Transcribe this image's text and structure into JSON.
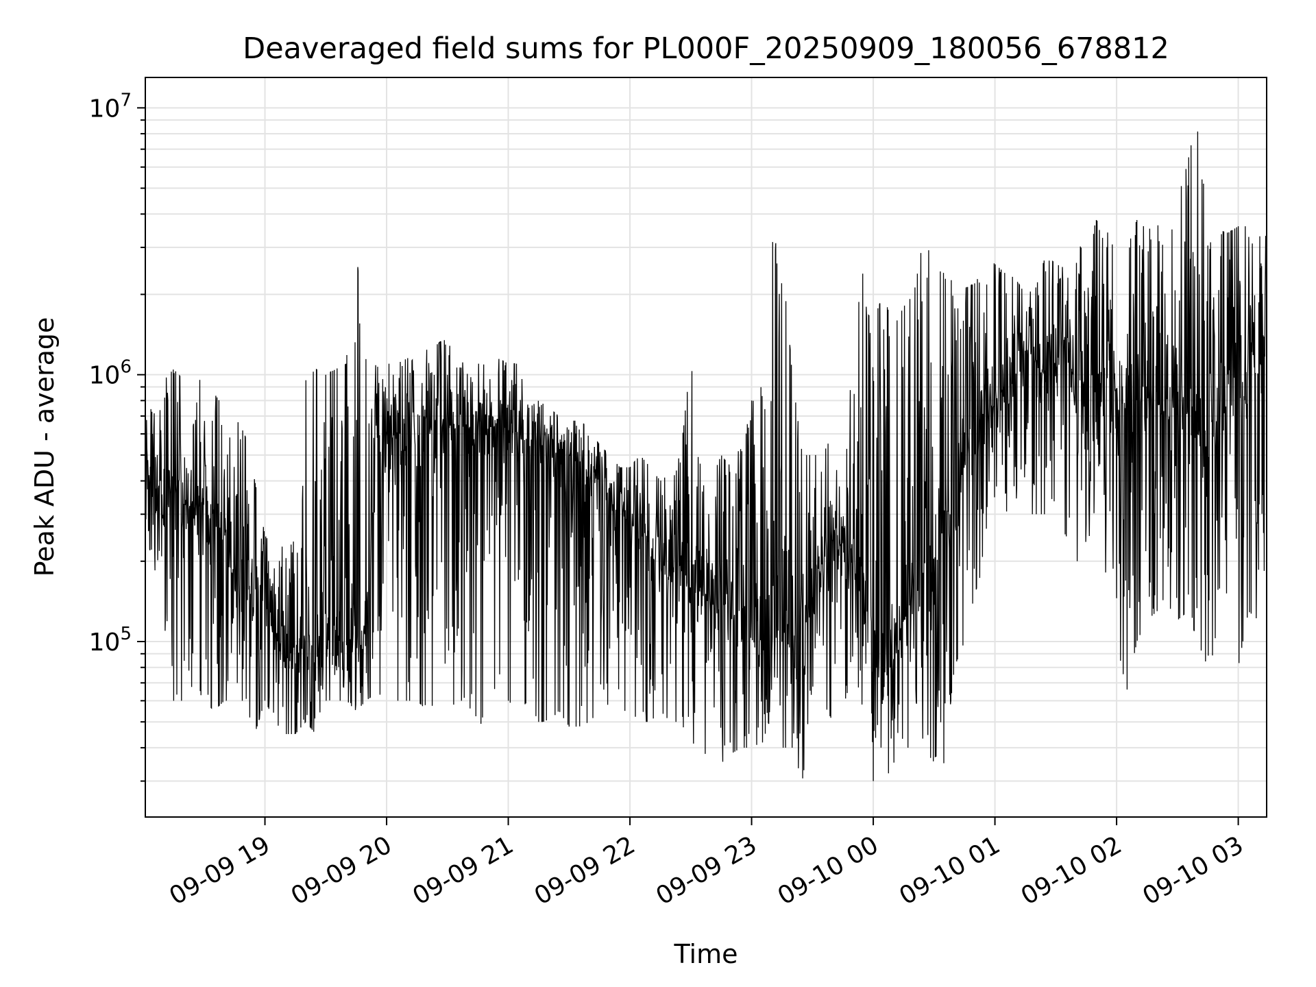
{
  "chart_data": {
    "type": "line",
    "title": "Deaveraged field sums for PL000F_20250909_180056_678812",
    "xlabel": "Time",
    "ylabel": "Peak ADU - average",
    "y_scale": "log",
    "ylim": [
      22000,
      13000000
    ],
    "xlim": [
      "2025-09-09 18:01",
      "2025-09-10 03:14"
    ],
    "grid": true,
    "x_ticks": [
      {
        "time": "2025-09-09 19:00",
        "label": "09-09 19"
      },
      {
        "time": "2025-09-09 20:00",
        "label": "09-09 20"
      },
      {
        "time": "2025-09-09 21:00",
        "label": "09-09 21"
      },
      {
        "time": "2025-09-09 22:00",
        "label": "09-09 22"
      },
      {
        "time": "2025-09-09 23:00",
        "label": "09-09 23"
      },
      {
        "time": "2025-09-10 00:00",
        "label": "09-10 00"
      },
      {
        "time": "2025-09-10 01:00",
        "label": "09-10 01"
      },
      {
        "time": "2025-09-10 02:00",
        "label": "09-10 02"
      },
      {
        "time": "2025-09-10 03:00",
        "label": "09-10 03"
      }
    ],
    "y_ticks": [
      {
        "value": 100000,
        "base": "10",
        "exp": "5"
      },
      {
        "value": 1000000,
        "base": "10",
        "exp": "6"
      },
      {
        "value": 10000000,
        "base": "10",
        "exp": "7"
      }
    ],
    "series": [
      {
        "color": "#000000",
        "x": [
          "2025-09-09 18:01",
          "2025-09-09 18:05",
          "2025-09-09 18:10",
          "2025-09-09 18:15",
          "2025-09-09 18:20",
          "2025-09-09 18:25",
          "2025-09-09 18:30",
          "2025-09-09 18:35",
          "2025-09-09 18:40",
          "2025-09-09 18:45",
          "2025-09-09 18:50",
          "2025-09-09 18:55",
          "2025-09-09 19:00",
          "2025-09-09 19:05",
          "2025-09-09 19:10",
          "2025-09-09 19:15",
          "2025-09-09 19:20",
          "2025-09-09 19:25",
          "2025-09-09 19:30",
          "2025-09-09 19:35",
          "2025-09-09 19:40",
          "2025-09-09 19:45",
          "2025-09-09 19:50",
          "2025-09-09 19:55",
          "2025-09-09 20:00",
          "2025-09-09 20:05",
          "2025-09-09 20:10",
          "2025-09-09 20:15",
          "2025-09-09 20:20",
          "2025-09-09 20:25",
          "2025-09-09 20:30",
          "2025-09-09 20:35",
          "2025-09-09 20:40",
          "2025-09-09 20:45",
          "2025-09-09 20:50",
          "2025-09-09 20:55",
          "2025-09-09 21:00",
          "2025-09-09 21:05",
          "2025-09-09 21:10",
          "2025-09-09 21:15",
          "2025-09-09 21:20",
          "2025-09-09 21:25",
          "2025-09-09 21:30",
          "2025-09-09 21:35",
          "2025-09-09 21:40",
          "2025-09-09 21:45",
          "2025-09-09 21:50",
          "2025-09-09 21:55",
          "2025-09-09 22:00",
          "2025-09-09 22:05",
          "2025-09-09 22:10",
          "2025-09-09 22:15",
          "2025-09-09 22:20",
          "2025-09-09 22:25",
          "2025-09-09 22:30",
          "2025-09-09 22:35",
          "2025-09-09 22:40",
          "2025-09-09 22:45",
          "2025-09-09 22:50",
          "2025-09-09 22:55",
          "2025-09-09 23:00",
          "2025-09-09 23:05",
          "2025-09-09 23:10",
          "2025-09-09 23:15",
          "2025-09-09 23:20",
          "2025-09-09 23:25",
          "2025-09-09 23:30",
          "2025-09-09 23:35",
          "2025-09-09 23:40",
          "2025-09-09 23:45",
          "2025-09-09 23:50",
          "2025-09-09 23:55",
          "2025-09-10 00:00",
          "2025-09-10 00:05",
          "2025-09-10 00:10",
          "2025-09-10 00:15",
          "2025-09-10 00:20",
          "2025-09-10 00:25",
          "2025-09-10 00:30",
          "2025-09-10 00:35",
          "2025-09-10 00:40",
          "2025-09-10 00:45",
          "2025-09-10 00:50",
          "2025-09-10 00:55",
          "2025-09-10 01:00",
          "2025-09-10 01:05",
          "2025-09-10 01:10",
          "2025-09-10 01:15",
          "2025-09-10 01:20",
          "2025-09-10 01:25",
          "2025-09-10 01:30",
          "2025-09-10 01:35",
          "2025-09-10 01:40",
          "2025-09-10 01:45",
          "2025-09-10 01:50",
          "2025-09-10 01:55",
          "2025-09-10 02:00",
          "2025-09-10 02:05",
          "2025-09-10 02:10",
          "2025-09-10 02:15",
          "2025-09-10 02:20",
          "2025-09-10 02:25",
          "2025-09-10 02:30",
          "2025-09-10 02:35",
          "2025-09-10 02:40",
          "2025-09-10 02:45",
          "2025-09-10 02:50",
          "2025-09-10 02:55",
          "2025-09-10 03:00",
          "2025-09-10 03:05",
          "2025-09-10 03:10",
          "2025-09-10 03:14"
        ],
        "y": [
          450000,
          400000,
          350000,
          380000,
          330000,
          320000,
          300000,
          280000,
          250000,
          200000,
          160000,
          150000,
          180000,
          110000,
          95000,
          90000,
          100000,
          95000,
          110000,
          100000,
          100000,
          105000,
          110000,
          600000,
          580000,
          560000,
          620000,
          580000,
          600000,
          650000,
          620000,
          630000,
          640000,
          660000,
          650000,
          620000,
          600000,
          580000,
          560000,
          540000,
          550000,
          520000,
          500000,
          450000,
          420000,
          400000,
          350000,
          300000,
          280000,
          250000,
          240000,
          230000,
          200000,
          180000,
          160000,
          150000,
          150000,
          140000,
          130000,
          120000,
          120000,
          110000,
          110000,
          100000,
          100000,
          90000,
          150000,
          200000,
          250000,
          240000,
          220000,
          200000,
          100000,
          80000,
          90000,
          120000,
          150000,
          200000,
          180000,
          250000,
          350000,
          450000,
          600000,
          700000,
          800000,
          900000,
          1100000,
          1200000,
          1100000,
          1000000,
          1050000,
          1100000,
          1000000,
          950000,
          900000,
          850000,
          800000,
          780000,
          750000,
          800000,
          780000,
          700000,
          650000,
          600000,
          620000,
          650000,
          700000,
          800000,
          900000,
          1000000,
          1100000,
          1100000
        ],
        "y_low": [
          250000,
          200000,
          120000,
          60000,
          60000,
          70000,
          60000,
          55000,
          60000,
          60000,
          60000,
          45000,
          60000,
          50000,
          45000,
          45000,
          50000,
          45000,
          60000,
          60000,
          60000,
          55000,
          60000,
          65000,
          60000,
          60000,
          60000,
          60000,
          55000,
          60000,
          55000,
          60000,
          60000,
          45000,
          60000,
          70000,
          60000,
          55000,
          60000,
          50000,
          50000,
          55000,
          48000,
          48000,
          50000,
          55000,
          50000,
          55000,
          55000,
          50000,
          50000,
          55000,
          50000,
          50000,
          42000,
          40000,
          30000,
          35000,
          38000,
          40000,
          40000,
          42000,
          40000,
          40000,
          40000,
          30000,
          55000,
          60000,
          50000,
          45000,
          55000,
          45000,
          30000,
          28000,
          35000,
          40000,
          40000,
          40000,
          35000,
          35000,
          80000,
          100000,
          150000,
          200000,
          250000,
          300000,
          350000,
          300000,
          300000,
          300000,
          280000,
          250000,
          200000,
          200000,
          200000,
          180000,
          100000,
          65000,
          100000,
          120000,
          130000,
          120000,
          120000,
          130000,
          100000,
          80000,
          100000,
          80000,
          80000,
          130000,
          120000,
          90000
        ],
        "y_high": [
          850000,
          700000,
          950000,
          1050000,
          950000,
          900000,
          1000000,
          850000,
          750000,
          700000,
          600000,
          400000,
          250000,
          220000,
          230000,
          350000,
          950000,
          1050000,
          1000000,
          1050000,
          1100000,
          2900000,
          1200000,
          1100000,
          1100000,
          1100000,
          1150000,
          1200000,
          1250000,
          1300000,
          1400000,
          1200000,
          1150000,
          1100000,
          1100000,
          1150000,
          1100000,
          1100000,
          750000,
          800000,
          750000,
          700000,
          650000,
          700000,
          600000,
          550000,
          500000,
          450000,
          450000,
          500000,
          450000,
          400000,
          430000,
          500000,
          1150000,
          450000,
          400000,
          500000,
          450000,
          550000,
          800000,
          1200000,
          3150000,
          3050000,
          1000000,
          500000,
          500000,
          500000,
          600000,
          300000,
          1300000,
          2450000,
          1600000,
          2000000,
          1500000,
          1800000,
          2000000,
          3350000,
          2500000,
          2400000,
          2200000,
          2100000,
          2200000,
          2800000,
          2600000,
          2400000,
          2300000,
          2000000,
          2100000,
          2800000,
          2600000,
          2500000,
          3200000,
          2800000,
          3800000,
          3500000,
          2800000,
          3000000,
          3800000,
          3500000,
          3600000,
          4000000,
          4500000,
          6200000,
          9700000,
          4000000,
          3500000,
          3400000,
          3600000,
          3600000,
          3300000,
          3300000
        ]
      }
    ]
  }
}
